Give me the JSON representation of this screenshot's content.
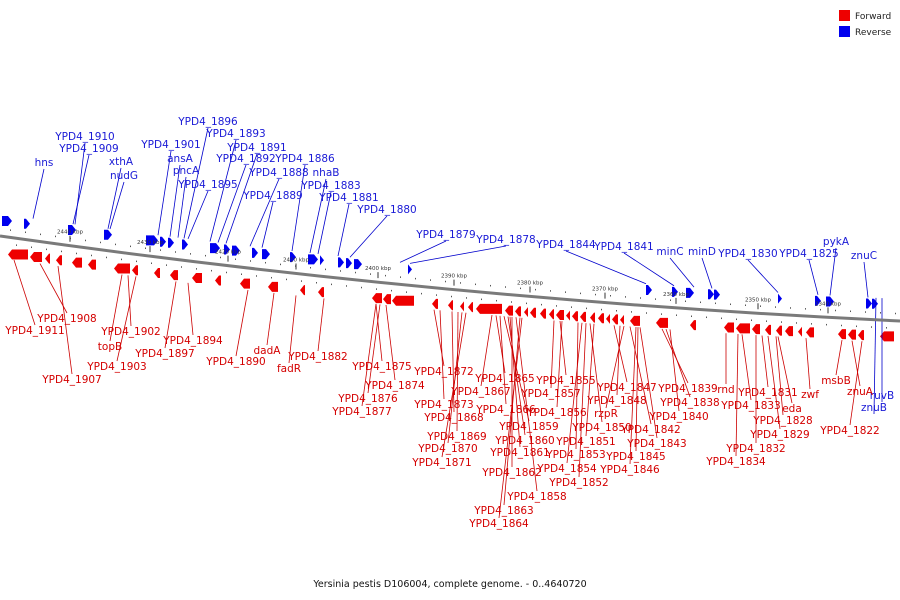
{
  "legend": {
    "forward": "Forward",
    "reverse": "Reverse",
    "forward_color": "#ee0000",
    "reverse_color": "#0000ee"
  },
  "caption": "Yersinia pestis D106004, complete genome. - 0..4640720",
  "axis_ticks": [
    "2440 kbp",
    "2430 kbp",
    "2420 kbp",
    "2410 kbp",
    "2400 kbp",
    "2390 kbp",
    "2380 kbp",
    "2370 kbp",
    "2360 kbp",
    "2350 kbp",
    "2340 kbp"
  ],
  "reverse_labels": [
    "hns",
    "YPD4_1910",
    "YPD4_1909",
    "xthA",
    "nudG",
    "YPD4_1901",
    "ansA",
    "pncA",
    "YPD4_1896",
    "YPD4_1893",
    "YPD4_1891",
    "YPD4_1892",
    "YPD4_1886",
    "YPD4_1895",
    "YPD4_1888",
    "nhaB",
    "YPD4_1889",
    "YPD4_1883",
    "YPD4_1881",
    "YPD4_1880",
    "YPD4_1879",
    "YPD4_1878",
    "YPD4_1844",
    "YPD4_1841",
    "minC",
    "minD",
    "YPD4_1830",
    "YPD4_1825",
    "pykA",
    "znuC",
    "ruvB",
    "znuB"
  ],
  "forward_labels": [
    "YPD4_1911",
    "YPD4_1908",
    "YPD4_1907",
    "topB",
    "YPD4_1902",
    "YPD4_1903",
    "YPD4_1897",
    "YPD4_1894",
    "YPD4_1890",
    "dadA",
    "fadR",
    "YPD4_1882",
    "YPD4_1875",
    "YPD4_1874",
    "YPD4_1876",
    "YPD4_1877",
    "YPD4_1872",
    "YPD4_1873",
    "YPD4_1868",
    "YPD4_1869",
    "YPD4_1870",
    "YPD4_1871",
    "YPD4_1865",
    "YPD4_1867",
    "YPD4_1866",
    "YPD4_1859",
    "YPD4_1860",
    "YPD4_1861",
    "YPD4_1862",
    "YPD4_1858",
    "YPD4_1863",
    "YPD4_1864",
    "YPD4_1855",
    "YPD4_1857",
    "YPD4_1856",
    "YPD4_1850",
    "YPD4_1851",
    "YPD4_1853",
    "YPD4_1854",
    "YPD4_1852",
    "YPD4_1847",
    "YPD4_1848",
    "rzpR",
    "YPD4_1842",
    "YPD4_1843",
    "YPD4_1845",
    "YPD4_1846",
    "YPD4_1839",
    "YPD4_1838",
    "YPD4_1840",
    "rnd",
    "YPD4_1831",
    "YPD4_1833",
    "eda",
    "YPD4_1828",
    "YPD4_1829",
    "YPD4_1832",
    "YPD4_1834",
    "zwf",
    "msbB",
    "znuA",
    "YPD4_1822"
  ]
}
